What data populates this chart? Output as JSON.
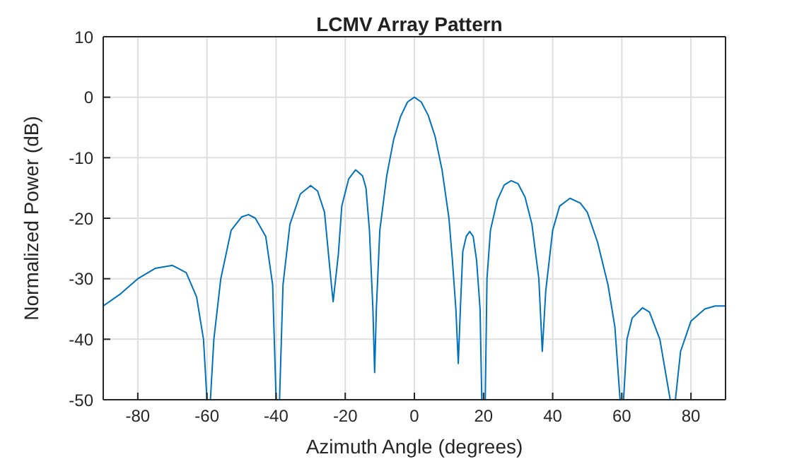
{
  "chart_data": {
    "type": "line",
    "title": "LCMV Array Pattern",
    "xlabel": "Azimuth Angle (degrees)",
    "ylabel": "Normalized Power (dB)",
    "xlim": [
      -90,
      90
    ],
    "xticks": [
      -80,
      -60,
      -40,
      -20,
      0,
      20,
      40,
      60,
      80
    ],
    "ylim": [
      -50,
      10
    ],
    "yticks": [
      -50,
      -40,
      -30,
      -20,
      -10,
      0,
      10
    ],
    "grid": true,
    "marker": "none",
    "line_style": "solid",
    "series": [
      {
        "color": "#0072bd",
        "x": [
          -90,
          -85,
          -80,
          -75,
          -70,
          -66,
          -63,
          -61,
          -60,
          -59,
          -58,
          -56,
          -53,
          -50,
          -48,
          -46,
          -43,
          -41,
          -40,
          -39,
          -38,
          -36,
          -33,
          -30,
          -28,
          -26,
          -25,
          -24,
          -23.5,
          -22,
          -21,
          -19,
          -17,
          -15,
          -14,
          -13,
          -12,
          -11.5,
          -11,
          -10,
          -8,
          -6,
          -4,
          -2,
          0,
          2,
          4,
          6,
          8,
          10,
          11,
          12,
          12.7,
          13.3,
          14,
          15,
          16,
          17,
          18,
          19,
          19.5,
          20.5,
          21,
          22,
          24,
          26,
          28,
          30,
          32,
          34,
          36,
          37,
          38,
          40,
          42,
          45,
          48,
          50,
          53,
          56,
          58,
          59.5,
          60.5,
          61.5,
          63,
          66,
          68,
          71,
          74,
          75.5,
          77,
          80,
          84,
          87,
          90
        ],
        "values": [
          -34.5,
          -32.5,
          -30,
          -28.3,
          -27.8,
          -29,
          -33,
          -40,
          -50,
          -50,
          -40,
          -30,
          -22,
          -19.8,
          -19.4,
          -20,
          -23,
          -31,
          -50,
          -50,
          -31,
          -21,
          -16,
          -14.6,
          -15.5,
          -19,
          -25,
          -31,
          -33.8,
          -26,
          -18,
          -13.5,
          -12,
          -13,
          -15,
          -22,
          -35,
          -45.5,
          -35,
          -22,
          -13,
          -7,
          -3.2,
          -0.8,
          0,
          -0.8,
          -3,
          -6.5,
          -12,
          -20,
          -27,
          -35,
          -44,
          -35,
          -25.5,
          -23,
          -22.2,
          -23,
          -27,
          -35,
          -50,
          -50,
          -30,
          -22,
          -17,
          -14.5,
          -13.8,
          -14.3,
          -16.5,
          -21,
          -30,
          -42,
          -32,
          -22,
          -18,
          -16.7,
          -17.5,
          -19,
          -24,
          -31,
          -38,
          -50,
          -50,
          -40,
          -36.5,
          -34.8,
          -35.5,
          -40,
          -50,
          -50,
          -42,
          -37,
          -35,
          -34.5,
          -34.5
        ]
      }
    ]
  }
}
